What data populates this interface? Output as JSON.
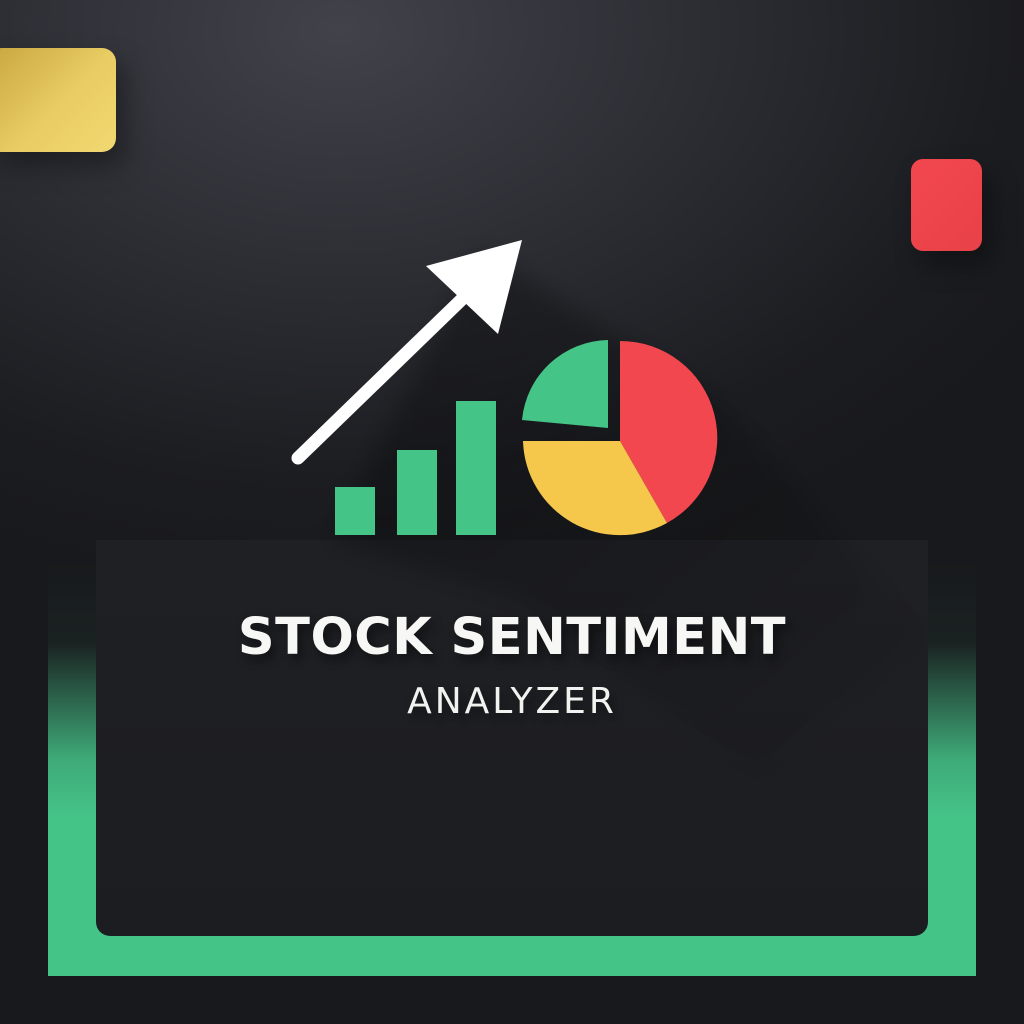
{
  "logo": {
    "title": "STOCK SENTIMENT",
    "subtitle": "ANALYZER"
  },
  "colors": {
    "background": "#1c1d21",
    "green": "#45c488",
    "red": "#f2474e",
    "yellow": "#f5c84c",
    "accent_yellow": "#e9cc63",
    "text": "#f7f7f5"
  },
  "icons": [
    "trend-arrow-icon",
    "bar-chart-icon",
    "pie-chart-icon"
  ]
}
